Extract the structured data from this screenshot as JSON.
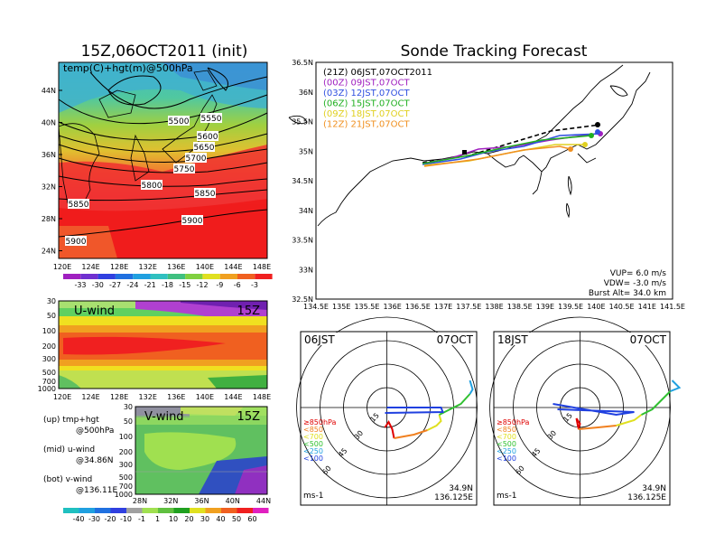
{
  "left": {
    "title": "15Z,06OCT2011 (init)",
    "map": {
      "label": "temp(C)+hgt(m)@500hPa",
      "lat_ticks": [
        "44N",
        "40N",
        "36N",
        "32N",
        "28N",
        "24N"
      ],
      "lon_ticks": [
        "120E",
        "124E",
        "128E",
        "132E",
        "136E",
        "140E",
        "144E",
        "148E"
      ],
      "contours": [
        "5500",
        "5550",
        "5600",
        "5650",
        "5700",
        "5750",
        "5800",
        "5850",
        "5850",
        "5900",
        "5900"
      ],
      "colorbar": [
        "-33",
        "-30",
        "-27",
        "-24",
        "-21",
        "-18",
        "-15",
        "-12",
        "-9",
        "-6",
        "-3"
      ]
    },
    "uwind": {
      "label": "U-wind",
      "time": "15Z",
      "p_ticks": [
        "30",
        "50",
        "100",
        "200",
        "300",
        "500",
        "700",
        "1000"
      ],
      "lon_ticks": [
        "120E",
        "124E",
        "128E",
        "132E",
        "136E",
        "140E",
        "144E",
        "148E"
      ]
    },
    "vwind": {
      "label": "V-wind",
      "time": "15Z",
      "p_ticks": [
        "30",
        "50",
        "100",
        "200",
        "300",
        "500",
        "700",
        "1000"
      ],
      "lat_ticks": [
        "28N",
        "32N",
        "36N",
        "40N",
        "44N"
      ]
    },
    "legend": {
      "up1": "(up) tmp+hgt",
      "up2": "@500hPa",
      "mid1": "(mid) u-wind",
      "mid2": "@34.86N",
      "bot1": "(bot) v-wind",
      "bot2": "@136.11E"
    },
    "windbar": [
      "-40",
      "-30",
      "-20",
      "-10",
      "-1",
      "1",
      "10",
      "20",
      "30",
      "40",
      "50",
      "60"
    ]
  },
  "right": {
    "title": "Sonde Tracking Forecast",
    "lat_ticks": [
      "36.5N",
      "36N",
      "35.5N",
      "35N",
      "34.5N",
      "34N",
      "33.5N",
      "33N",
      "32.5N"
    ],
    "lon_ticks": [
      "134.5E",
      "135E",
      "135.5E",
      "136E",
      "136.5E",
      "137E",
      "137.5E",
      "138E",
      "138.5E",
      "139E",
      "139.5E",
      "140E",
      "140.5E",
      "141E",
      "141.5E"
    ],
    "runs": [
      {
        "label": "(21Z)  06JST,07OCT2011",
        "color": "#000000"
      },
      {
        "label": "(00Z)  09JST,07OCT",
        "color": "#a020c0"
      },
      {
        "label": "(03Z)  12JST,07OCT",
        "color": "#3050e0"
      },
      {
        "label": "(06Z)  15JST,07OCT",
        "color": "#20b020"
      },
      {
        "label": "(09Z)  18JST,07OCT",
        "color": "#e0d020"
      },
      {
        "label": "(12Z)  21JST,07OCT",
        "color": "#f09020"
      }
    ],
    "vup": "VUP=  6.0  m/s",
    "vdw": "VDW=  -3.0  m/s",
    "burst": "Burst Alt=  34.0  km"
  },
  "polar_left": {
    "time": "06JST",
    "date": "07OCT",
    "rings": [
      "15",
      "30",
      "45",
      "60"
    ],
    "levels": [
      "≥850hPa",
      "<850",
      "<700",
      "<500",
      "<250",
      "<100"
    ],
    "units": "ms-1",
    "lat": "34.9N",
    "lon": "136.125E"
  },
  "polar_right": {
    "time": "18JST",
    "date": "07OCT",
    "rings": [
      "15",
      "30",
      "45",
      "60"
    ],
    "levels": [
      "≥850hPa",
      "<850",
      "<700",
      "<500",
      "<250",
      "<100"
    ],
    "units": "ms-1",
    "lat": "34.9N",
    "lon": "136.125E"
  },
  "colors": {
    "level_colors": [
      "#e00000",
      "#f08020",
      "#e0e020",
      "#30c030",
      "#20a0e0",
      "#2040e0"
    ]
  },
  "chart_data": [
    {
      "type": "heatmap",
      "title": "15Z,06OCT2011 (init)",
      "subtitle": "temp(C)+hgt(m)@500hPa",
      "xlabel": "",
      "ylabel": "",
      "xlim": [
        120,
        149
      ],
      "ylim": [
        22,
        47
      ],
      "colorbar_ticks": [
        -33,
        -30,
        -27,
        -24,
        -21,
        -18,
        -15,
        -12,
        -9,
        -6,
        -3
      ],
      "contour_levels": [
        5500,
        5550,
        5600,
        5650,
        5700,
        5750,
        5800,
        5850,
        5900
      ]
    },
    {
      "type": "heatmap",
      "title": "U-wind",
      "xlim": [
        120,
        149
      ],
      "y_ticks": [
        30,
        50,
        100,
        200,
        300,
        500,
        700,
        1000
      ]
    },
    {
      "type": "heatmap",
      "title": "V-wind",
      "xlim": [
        28,
        44
      ],
      "y_ticks": [
        30,
        50,
        100,
        200,
        300,
        500,
        700,
        1000
      ]
    },
    {
      "type": "line",
      "title": "Sonde Tracking Forecast",
      "xlim": [
        134.5,
        141.5
      ],
      "ylim": [
        32.5,
        36.5
      ],
      "series": [
        {
          "name": "(21Z) 06JST,07OCT2011",
          "x": [
            136.2,
            137.6,
            140.1
          ],
          "y": [
            34.86,
            35.0,
            35.45
          ]
        },
        {
          "name": "(00Z) 09JST,07OCT",
          "x": [
            136.2,
            137.5,
            139.5,
            140.1
          ],
          "y": [
            34.86,
            34.95,
            35.2,
            35.3
          ]
        },
        {
          "name": "(03Z) 12JST,07OCT",
          "x": [
            136.2,
            137.6,
            139.5,
            140.0
          ],
          "y": [
            34.86,
            34.98,
            35.28,
            35.35
          ]
        },
        {
          "name": "(06Z) 15JST,07OCT",
          "x": [
            136.2,
            137.6,
            139.5,
            140.0
          ],
          "y": [
            34.86,
            34.97,
            35.25,
            35.3
          ]
        },
        {
          "name": "(09Z) 18JST,07OCT",
          "x": [
            136.3,
            137.8,
            139.2,
            139.75
          ],
          "y": [
            34.86,
            34.95,
            35.12,
            35.1
          ]
        },
        {
          "name": "(12Z) 21JST,07OCT",
          "x": [
            136.3,
            138.0,
            139.3,
            139.6
          ],
          "y": [
            34.86,
            34.95,
            35.1,
            35.05
          ]
        }
      ]
    }
  ]
}
